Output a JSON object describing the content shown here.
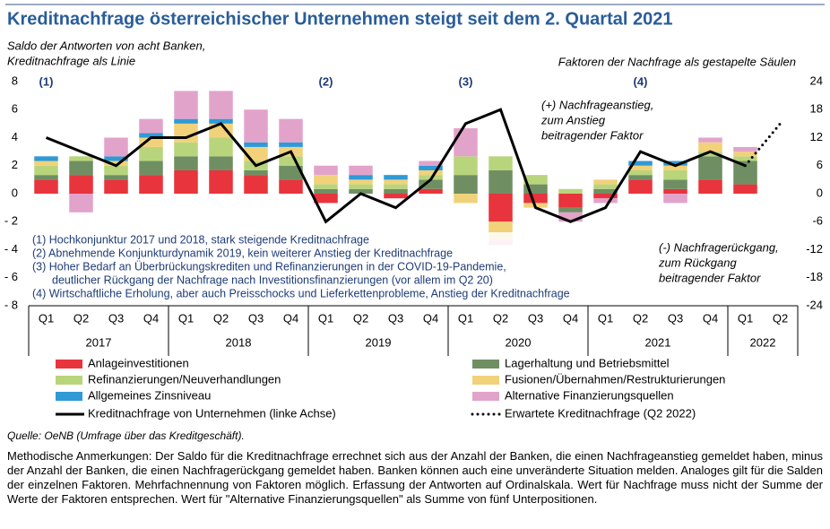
{
  "chart_data": {
    "type": "combo",
    "title": "Kreditnachfrage österreichischer Unternehmen steigt seit dem 2. Quartal 2021",
    "subtitle_left": [
      "Saldo der Antworten von acht Banken,",
      "Kreditnachfrage als Linie"
    ],
    "subtitle_right": "Faktoren der Nachfrage als gestapelte Säulen",
    "categories": [
      "Q1",
      "Q2",
      "Q3",
      "Q4",
      "Q1",
      "Q2",
      "Q3",
      "Q4",
      "Q1",
      "Q2",
      "Q3",
      "Q4",
      "Q1",
      "Q2",
      "Q3",
      "Q4",
      "Q1",
      "Q2",
      "Q3",
      "Q4",
      "Q1",
      "Q2"
    ],
    "category_groups": [
      {
        "label": "2017",
        "span": 4
      },
      {
        "label": "2018",
        "span": 4
      },
      {
        "label": "2019",
        "span": 4
      },
      {
        "label": "2020",
        "span": 4
      },
      {
        "label": "2021",
        "span": 4
      },
      {
        "label": "2022",
        "span": 2
      }
    ],
    "ylim": [
      -8,
      8
    ],
    "yticks": [
      {
        "value": -8,
        "label": "- 8"
      },
      {
        "value": -6,
        "label": "- 6"
      },
      {
        "value": -4,
        "label": "- 4"
      },
      {
        "value": -2,
        "label": "- 2"
      },
      0,
      2,
      4,
      6,
      8
    ],
    "y2lim": [
      -24,
      24
    ],
    "y2ticks": [
      {
        "value": -24,
        "label": "-24"
      },
      {
        "value": -18,
        "label": "-18"
      },
      {
        "value": -12,
        "label": "-12"
      },
      {
        "value": -6,
        "label": "-6"
      },
      0,
      6,
      12,
      18,
      24
    ],
    "series": [
      {
        "name": "Anlageinvestitionen",
        "type": "bar",
        "axis": "y2",
        "color": "#e8343c",
        "values": [
          3,
          4,
          3,
          4,
          5,
          5,
          4,
          3,
          -2,
          0,
          -1,
          1,
          0,
          -6,
          -2,
          -3,
          -1,
          3,
          1,
          3,
          2,
          null
        ]
      },
      {
        "name": "Lagerhaltung und Betriebsmittel",
        "type": "bar",
        "axis": "y2",
        "color": "#6f8f63",
        "values": [
          1,
          3,
          1,
          3,
          3,
          3,
          1,
          3,
          1,
          1,
          1,
          2,
          4,
          5,
          2,
          -1,
          1,
          1,
          2,
          5,
          5,
          null
        ]
      },
      {
        "name": "Refinanzierungen/Neuverhandlungen",
        "type": "bar",
        "axis": "y2",
        "color": "#b9d57c",
        "values": [
          2,
          1,
          2,
          3,
          3,
          4,
          2,
          2,
          1,
          1,
          1,
          1,
          4,
          3,
          2,
          1,
          1,
          1,
          2,
          1,
          1,
          null
        ]
      },
      {
        "name": "Fusionen/Übernahmen/Restrukturierungen",
        "type": "bar",
        "axis": "y2",
        "color": "#f1d27a",
        "values": [
          1,
          0,
          1,
          2,
          4,
          3,
          3,
          2,
          2,
          1,
          1,
          1,
          -2,
          -4,
          -1,
          0,
          1,
          1,
          1,
          2,
          1,
          null
        ]
      },
      {
        "name": "Allgemeines Zinsniveau",
        "type": "bar",
        "axis": "y2",
        "color": "#2f9ad6",
        "values": [
          1,
          0,
          1,
          1,
          1,
          1,
          1,
          1,
          0,
          1,
          1,
          1,
          0,
          0,
          0,
          0,
          0,
          1,
          1,
          0,
          0,
          null
        ]
      },
      {
        "name": "Alternative Finanzierungsquellen",
        "type": "bar",
        "axis": "y2",
        "color": "#e2a3cb",
        "values": [
          0,
          -4,
          4,
          3,
          6,
          6,
          7,
          5,
          2,
          2,
          0,
          1,
          6,
          -1,
          0,
          -2,
          -1,
          0,
          -2,
          1,
          1,
          null
        ]
      },
      {
        "name": "Kreditnachfrage von Unternehmen (linke Achse)",
        "type": "line",
        "color": "#000000",
        "style": "solid",
        "values": [
          4,
          3,
          2,
          4,
          4,
          5,
          2,
          3,
          -2,
          0,
          -1,
          1,
          5,
          6,
          -1,
          -2,
          -1,
          3,
          2,
          3,
          2,
          null
        ]
      },
      {
        "name": "Erwartete Kreditnachfrage (Q2 2022)",
        "type": "line",
        "color": "#000000",
        "style": "dotted",
        "values": [
          null,
          null,
          null,
          null,
          null,
          null,
          null,
          null,
          null,
          null,
          null,
          null,
          null,
          null,
          null,
          null,
          null,
          null,
          null,
          null,
          2,
          5
        ]
      }
    ],
    "period_markers": [
      "(1)",
      "(2)",
      "(3)",
      "(4)"
    ],
    "notes": [
      "(1) Hochkonjunktur 2017 und 2018, stark steigende Kreditnachfrage",
      "(2) Abnehmende Konjunkturdynamik 2019, kein weiterer Anstieg der Kreditnachfrage",
      "(3) Hoher Bedarf an Überbrückungskrediten und Refinanzierungen in der COVID-19-Pandemie,",
      "deutlicher Rückgang der Nachfrage nach Investitionsfinanzierungen (vor allem im Q2 20)",
      "(4) Wirtschaftliche Erholung, aber auch Preisschocks und Lieferkettenprobleme, Anstieg der Kreditnachfrage"
    ],
    "annotation_up": [
      "(+) Nachfrageanstieg,",
      "zum Anstieg",
      "beitragender Faktor"
    ],
    "annotation_down": [
      "(-) Nachfragerückgang,",
      "zum Rückgang",
      "beitragender Faktor"
    ],
    "source": "Quelle: OeNB (Umfrage über das Kreditgeschäft).",
    "methodology": "Methodische Anmerkungen: Der Saldo für die Kreditnachfrage errechnet sich aus der Anzahl der Banken, die einen Nachfrageanstieg gemeldet haben, minus der Anzahl der Banken, die einen Nachfragerückgang gemeldet haben. Banken können auch eine unveränderte Situation melden. Analoges gilt für die Salden der einzelnen Faktoren. Mehrfachnennung von Faktoren möglich. Erfassung der Antworten auf Ordinalskala. Wert für Nachfrage muss nicht der Summe der Werte der Faktoren entsprechen. Wert für \"Alternative Finanzierungsquellen\" als Summe von fünf Unterpositionen."
  }
}
